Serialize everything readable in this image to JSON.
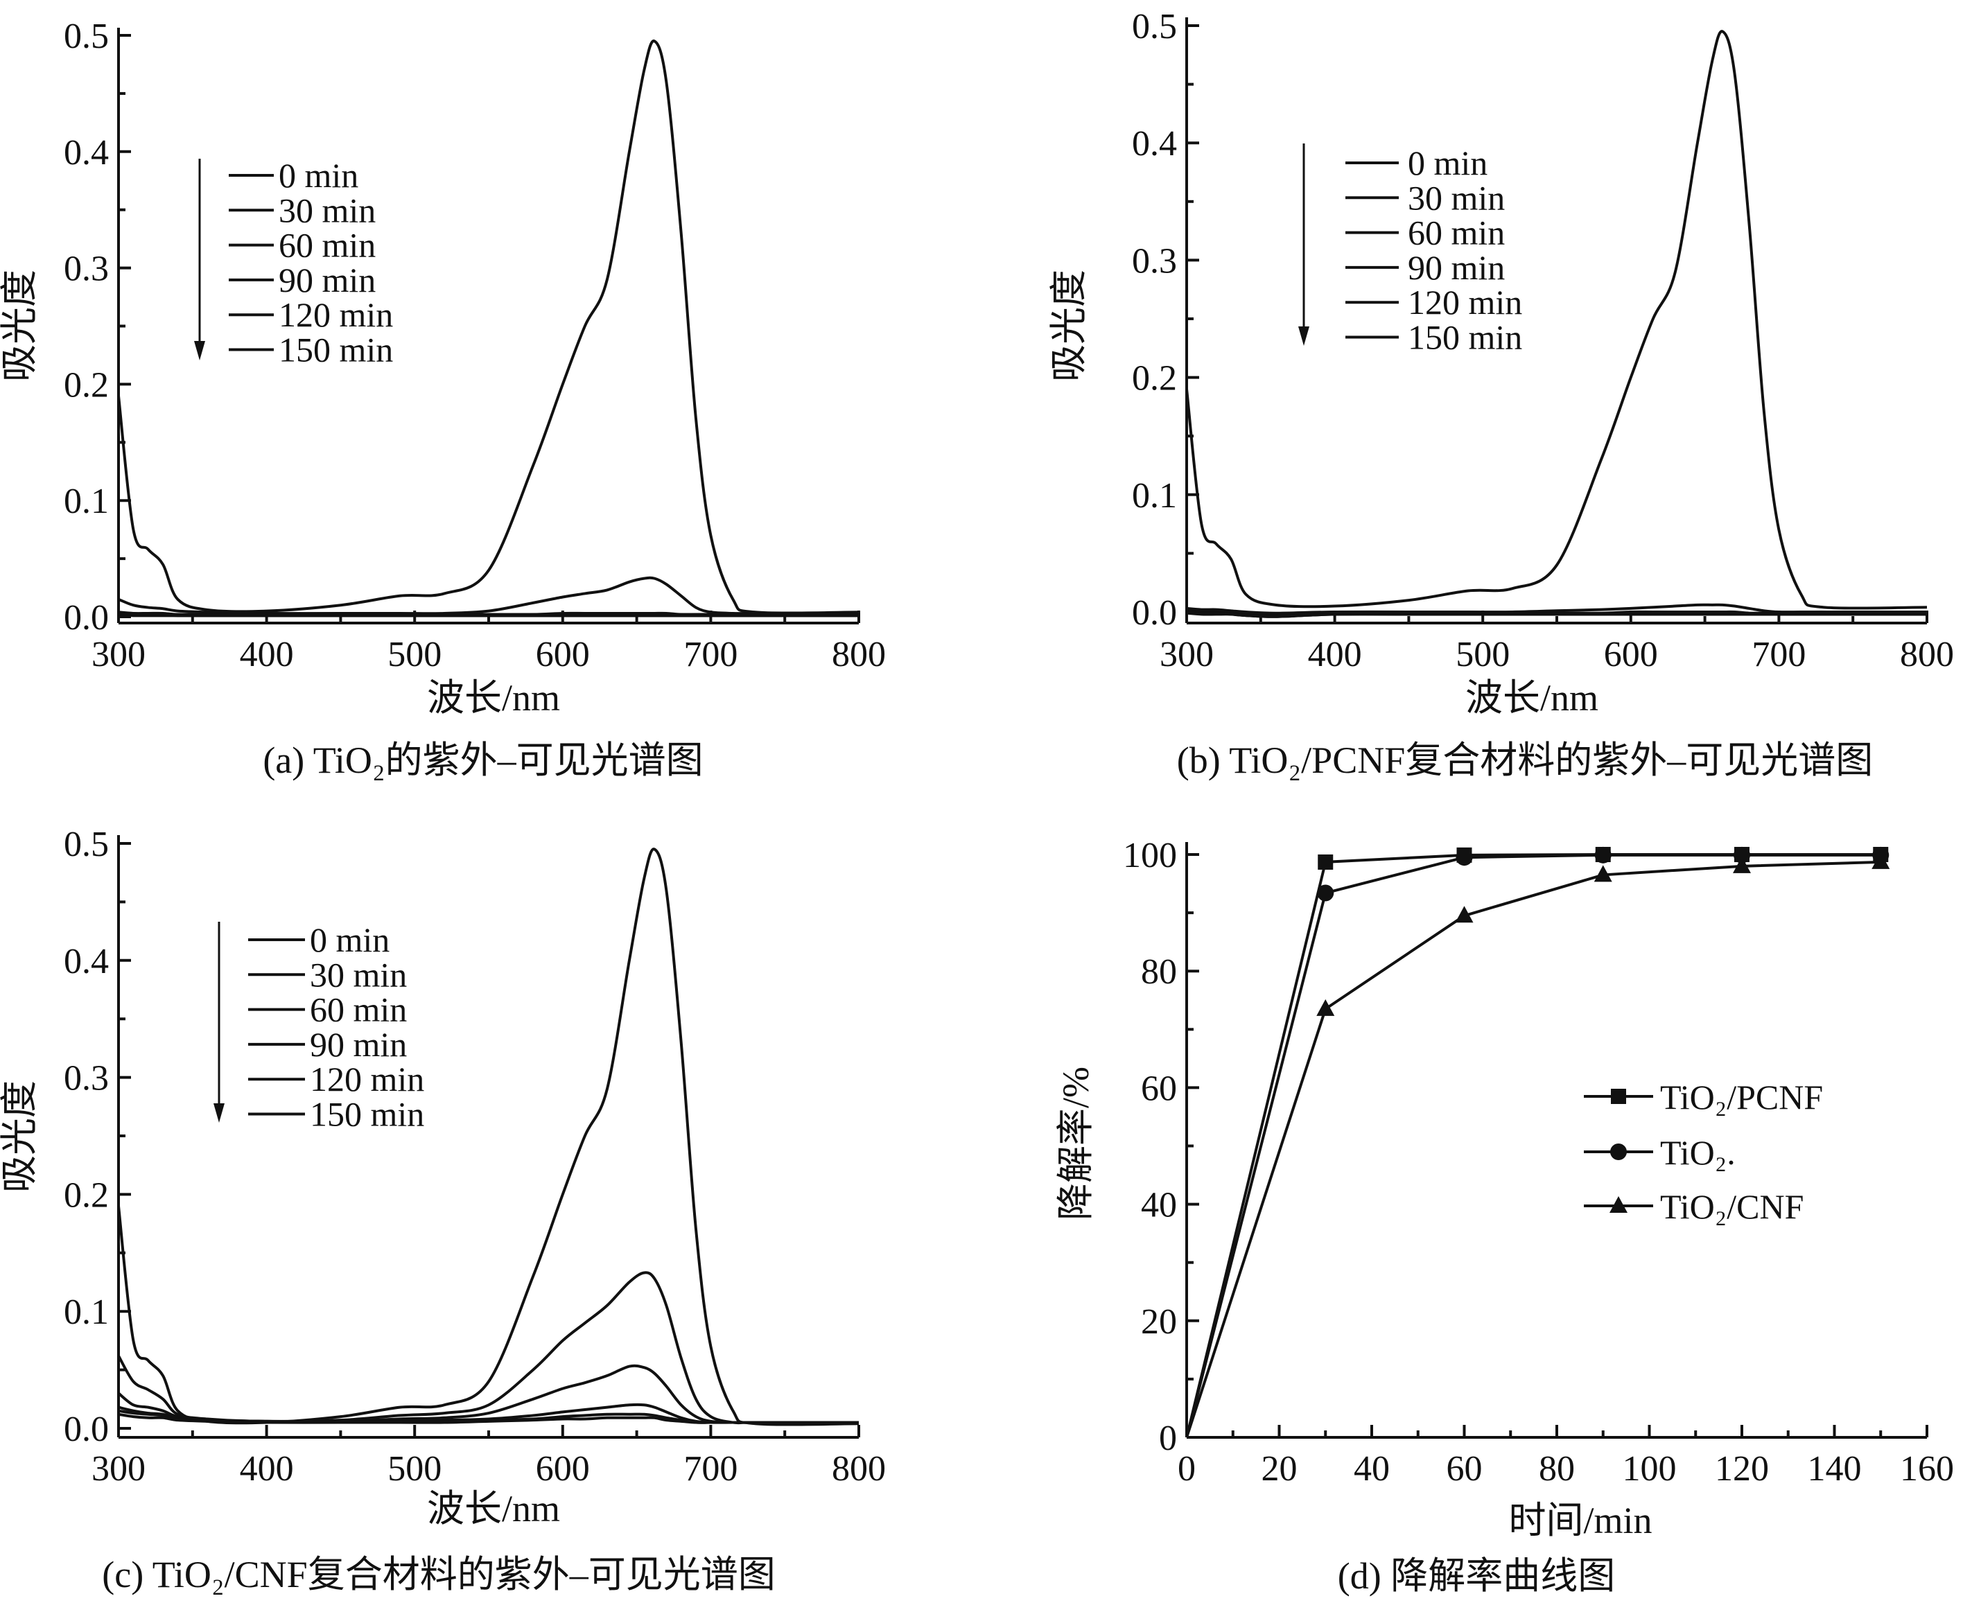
{
  "chart_data": [
    {
      "id": "a",
      "type": "line",
      "caption": "(a) TiO₂的紫外–可见光谱图",
      "xlabel": "波长/nm",
      "ylabel": "吸光度",
      "xlim": [
        300,
        800
      ],
      "ylim": [
        -0.01,
        0.5
      ],
      "xticks": [
        "300",
        "400",
        "500",
        "600",
        "700",
        "800"
      ],
      "yticks": [
        "0.0",
        "0.1",
        "0.2",
        "0.3",
        "0.4",
        "0.5"
      ],
      "x": [
        300,
        310,
        320,
        330,
        340,
        360,
        400,
        450,
        490,
        520,
        550,
        580,
        600,
        615,
        630,
        645,
        655,
        662,
        670,
        680,
        690,
        700,
        715,
        730,
        800
      ],
      "series": [
        {
          "name": "0 min",
          "y": [
            0.19,
            0.075,
            0.058,
            0.045,
            0.015,
            0.006,
            0.005,
            0.01,
            0.018,
            0.02,
            0.04,
            0.13,
            0.2,
            0.25,
            0.29,
            0.4,
            0.47,
            0.495,
            0.46,
            0.33,
            0.17,
            0.07,
            0.015,
            0.004,
            0.004
          ]
        },
        {
          "name": "30 min",
          "y": [
            0.015,
            0.01,
            0.008,
            0.007,
            0.005,
            0.004,
            0.003,
            0.003,
            0.003,
            0.003,
            0.005,
            0.012,
            0.017,
            0.02,
            0.023,
            0.03,
            0.033,
            0.033,
            0.028,
            0.018,
            0.008,
            0.004,
            0.003,
            0.003,
            0.003
          ]
        },
        {
          "name": "60 min",
          "y": [
            0.004,
            0.003,
            0.003,
            0.003,
            0.002,
            0.002,
            0.002,
            0.002,
            0.002,
            0.002,
            0.002,
            0.002,
            0.003,
            0.003,
            0.003,
            0.003,
            0.003,
            0.003,
            0.003,
            0.002,
            0.002,
            0.002,
            0.002,
            0.002,
            0.002
          ]
        },
        {
          "name": "90 min",
          "y": [
            0.003,
            0.003,
            0.002,
            0.002,
            0.002,
            0.002,
            0.002,
            0.002,
            0.002,
            0.002,
            0.002,
            0.002,
            0.002,
            0.002,
            0.002,
            0.002,
            0.002,
            0.002,
            0.002,
            0.002,
            0.002,
            0.002,
            0.002,
            0.002,
            0.002
          ]
        },
        {
          "name": "120 min",
          "y": [
            0.002,
            0.002,
            0.002,
            0.002,
            0.001,
            0.001,
            0.001,
            0.001,
            0.001,
            0.001,
            0.001,
            0.001,
            0.001,
            0.001,
            0.001,
            0.001,
            0.001,
            0.001,
            0.001,
            0.001,
            0.001,
            0.001,
            0.001,
            0.001,
            0.001
          ]
        },
        {
          "name": "150 min",
          "y": [
            0.002,
            0.001,
            0.001,
            0.001,
            0.001,
            0.001,
            0.001,
            0.001,
            0.001,
            0.001,
            0.001,
            0.001,
            0.001,
            0.001,
            0.001,
            0.001,
            0.001,
            0.001,
            0.001,
            0.001,
            0.001,
            0.001,
            0.001,
            0.001,
            0.001
          ]
        }
      ]
    },
    {
      "id": "b",
      "type": "line",
      "caption": "(b) TiO₂/PCNF复合材料的紫外–可见光谱图",
      "xlabel": "波长/nm",
      "ylabel": "吸光度",
      "xlim": [
        300,
        800
      ],
      "ylim": [
        -0.01,
        0.5
      ],
      "xticks": [
        "300",
        "400",
        "500",
        "600",
        "700",
        "800"
      ],
      "yticks": [
        "0.0",
        "0.1",
        "0.2",
        "0.3",
        "0.4",
        "0.5"
      ],
      "x": [
        300,
        310,
        320,
        330,
        340,
        360,
        400,
        450,
        490,
        520,
        550,
        580,
        600,
        615,
        630,
        645,
        655,
        662,
        670,
        680,
        690,
        700,
        715,
        730,
        800
      ],
      "series": [
        {
          "name": "0 min",
          "y": [
            0.19,
            0.075,
            0.058,
            0.045,
            0.015,
            0.006,
            0.005,
            0.01,
            0.018,
            0.02,
            0.04,
            0.13,
            0.2,
            0.25,
            0.29,
            0.4,
            0.47,
            0.495,
            0.46,
            0.33,
            0.17,
            0.07,
            0.015,
            0.004,
            0.004
          ]
        },
        {
          "name": "30 min",
          "y": [
            0.003,
            0.002,
            0.002,
            0.001,
            0,
            -0.001,
            0,
            0,
            0,
            0,
            0.001,
            0.002,
            0.003,
            0.004,
            0.005,
            0.006,
            0.006,
            0.006,
            0.005,
            0.003,
            0.001,
            0,
            0,
            0,
            0
          ]
        },
        {
          "name": "60 min",
          "y": [
            0.001,
            0,
            0,
            0,
            -0.002,
            -0.003,
            -0.001,
            -0.001,
            -0.001,
            -0.001,
            -0.001,
            -0.001,
            0,
            0,
            0,
            0,
            0,
            0,
            0,
            -0.001,
            -0.001,
            -0.001,
            -0.001,
            -0.001,
            -0.001
          ]
        },
        {
          "name": "90 min",
          "y": [
            0,
            -0.001,
            -0.001,
            -0.001,
            -0.003,
            -0.003,
            -0.002,
            -0.002,
            -0.002,
            -0.002,
            -0.002,
            -0.002,
            -0.001,
            -0.001,
            -0.001,
            -0.001,
            -0.001,
            -0.001,
            -0.001,
            -0.002,
            -0.002,
            -0.002,
            -0.002,
            -0.002,
            -0.002
          ]
        },
        {
          "name": "120 min",
          "y": [
            0,
            -0.001,
            -0.001,
            -0.002,
            -0.003,
            -0.004,
            -0.002,
            -0.002,
            -0.002,
            -0.002,
            -0.002,
            -0.002,
            -0.002,
            -0.002,
            -0.002,
            -0.002,
            -0.002,
            -0.002,
            -0.002,
            -0.002,
            -0.002,
            -0.002,
            -0.002,
            -0.002,
            -0.002
          ]
        },
        {
          "name": "150 min",
          "y": [
            -0.001,
            -0.002,
            -0.002,
            -0.002,
            -0.003,
            -0.004,
            -0.002,
            -0.002,
            -0.002,
            -0.002,
            -0.002,
            -0.002,
            -0.002,
            -0.002,
            -0.002,
            -0.002,
            -0.002,
            -0.002,
            -0.002,
            -0.002,
            -0.002,
            -0.002,
            -0.002,
            -0.002,
            -0.002
          ]
        }
      ]
    },
    {
      "id": "c",
      "type": "line",
      "caption": "(c) TiO₂/CNF复合材料的紫外–可见光谱图",
      "xlabel": "波长/nm",
      "ylabel": "吸光度",
      "xlim": [
        300,
        800
      ],
      "ylim": [
        -0.008,
        0.5
      ],
      "xticks": [
        "300",
        "400",
        "500",
        "600",
        "700",
        "800"
      ],
      "yticks": [
        "0.0",
        "0.1",
        "0.2",
        "0.3",
        "0.4",
        "0.5"
      ],
      "x": [
        300,
        310,
        320,
        330,
        340,
        360,
        400,
        450,
        490,
        520,
        550,
        580,
        600,
        615,
        630,
        645,
        655,
        662,
        670,
        680,
        690,
        700,
        715,
        730,
        800
      ],
      "series": [
        {
          "name": "0 min",
          "y": [
            0.19,
            0.075,
            0.058,
            0.045,
            0.015,
            0.006,
            0.005,
            0.01,
            0.018,
            0.02,
            0.04,
            0.13,
            0.2,
            0.25,
            0.29,
            0.4,
            0.47,
            0.495,
            0.46,
            0.33,
            0.17,
            0.07,
            0.015,
            0.004,
            0.004
          ]
        },
        {
          "name": "30 min",
          "y": [
            0.062,
            0.04,
            0.033,
            0.025,
            0.012,
            0.008,
            0.006,
            0.007,
            0.011,
            0.013,
            0.02,
            0.05,
            0.075,
            0.09,
            0.105,
            0.125,
            0.133,
            0.128,
            0.105,
            0.06,
            0.025,
            0.01,
            0.005,
            0.005,
            0.005
          ]
        },
        {
          "name": "60 min",
          "y": [
            0.03,
            0.02,
            0.018,
            0.015,
            0.01,
            0.007,
            0.006,
            0.006,
            0.008,
            0.009,
            0.013,
            0.025,
            0.034,
            0.039,
            0.045,
            0.053,
            0.052,
            0.047,
            0.036,
            0.02,
            0.01,
            0.006,
            0.005,
            0.005,
            0.005
          ]
        },
        {
          "name": "90 min",
          "y": [
            0.018,
            0.015,
            0.013,
            0.012,
            0.009,
            0.007,
            0.006,
            0.006,
            0.007,
            0.007,
            0.008,
            0.011,
            0.014,
            0.016,
            0.018,
            0.02,
            0.02,
            0.018,
            0.014,
            0.009,
            0.006,
            0.005,
            0.005,
            0.005,
            0.005
          ]
        },
        {
          "name": "120 min",
          "y": [
            0.015,
            0.013,
            0.012,
            0.011,
            0.008,
            0.007,
            0.006,
            0.006,
            0.006,
            0.006,
            0.007,
            0.008,
            0.01,
            0.011,
            0.012,
            0.012,
            0.012,
            0.011,
            0.009,
            0.007,
            0.005,
            0.005,
            0.005,
            0.005,
            0.005
          ]
        },
        {
          "name": "150 min",
          "y": [
            0.012,
            0.01,
            0.009,
            0.009,
            0.007,
            0.006,
            0.005,
            0.005,
            0.005,
            0.005,
            0.006,
            0.007,
            0.008,
            0.008,
            0.009,
            0.009,
            0.009,
            0.009,
            0.007,
            0.006,
            0.005,
            0.005,
            0.005,
            0.005,
            0.005
          ]
        }
      ]
    },
    {
      "id": "d",
      "type": "line",
      "caption": "(d) 降解率曲线图",
      "xlabel": "时间/min",
      "ylabel": "降解率/%",
      "xlim": [
        0,
        160
      ],
      "ylim": [
        0,
        100
      ],
      "xticks": [
        "0",
        "20",
        "40",
        "60",
        "80",
        "100",
        "120",
        "140",
        "160"
      ],
      "yticks": [
        "0",
        "20",
        "40",
        "60",
        "80",
        "100"
      ],
      "legend_position": "center-right",
      "x": [
        0,
        30,
        60,
        90,
        120,
        150
      ],
      "series": [
        {
          "name": "TiO₂/PCNF",
          "marker": "square",
          "y": [
            0,
            98.7,
            99.9,
            100,
            100,
            100
          ]
        },
        {
          "name": "TiO₂.",
          "marker": "circle",
          "y": [
            0,
            93.4,
            99.5,
            99.9,
            99.9,
            99.9
          ]
        },
        {
          "name": "TiO₂/CNF",
          "marker": "triangle",
          "y": [
            0,
            73.5,
            89.5,
            96.5,
            98,
            98.7
          ]
        }
      ]
    }
  ]
}
